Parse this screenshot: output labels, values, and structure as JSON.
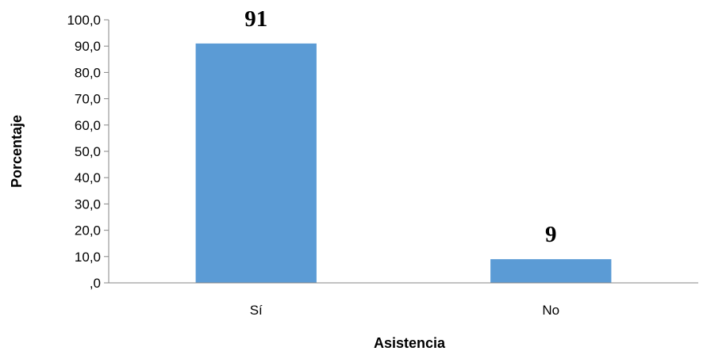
{
  "chart_data": {
    "type": "bar",
    "title": "",
    "xlabel": "Asistencia",
    "ylabel": "Porcentaje",
    "categories": [
      "Sí",
      "No"
    ],
    "values": [
      91,
      9
    ],
    "data_labels": [
      "91",
      "9"
    ],
    "ylim": [
      0,
      100
    ],
    "yticks": [
      0,
      10,
      20,
      30,
      40,
      50,
      60,
      70,
      80,
      90,
      100
    ],
    "ytick_labels": [
      ",0",
      "10,0",
      "20,0",
      "30,0",
      "40,0",
      "50,0",
      "60,0",
      "70,0",
      "80,0",
      "90,0",
      "100,0"
    ],
    "grid": false,
    "legend": "none",
    "bar_color": "#5B9BD5",
    "axis_color": "#868686"
  }
}
